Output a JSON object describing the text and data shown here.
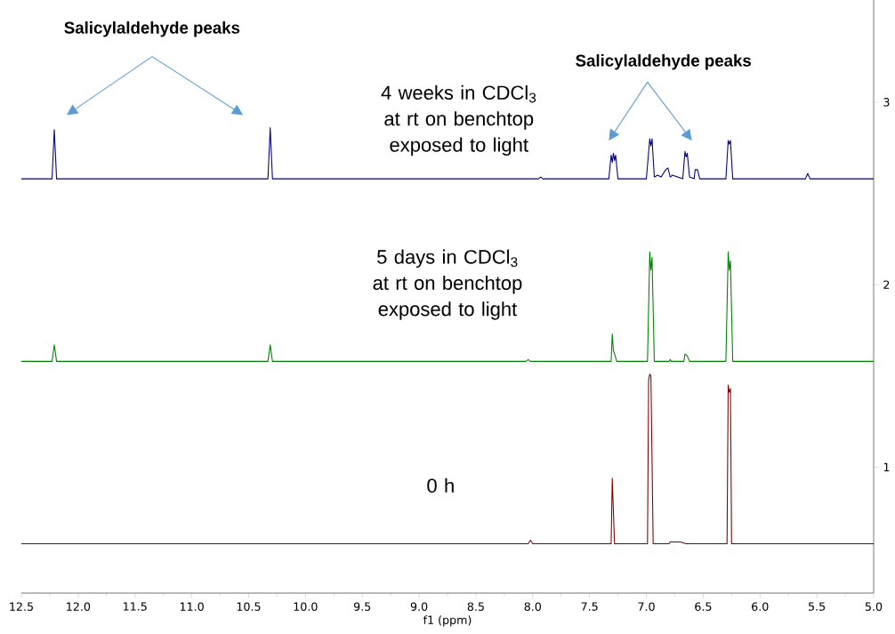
{
  "chart_data": {
    "type": "line",
    "xlabel": "f1 (ppm)",
    "xlim": [
      12.5,
      5.0
    ],
    "ylim": [
      0.31,
      3.56
    ],
    "xticks": [
      {
        "value": 12.5,
        "label": "12.5"
      },
      {
        "value": 12,
        "label": "12.0"
      },
      {
        "value": 11.5,
        "label": "11.5"
      },
      {
        "value": 11,
        "label": "11.0"
      },
      {
        "value": 10.5,
        "label": "10.5"
      },
      {
        "value": 10,
        "label": "10.0"
      },
      {
        "value": 9.5,
        "label": "9.5"
      },
      {
        "value": 9,
        "label": "9.0"
      },
      {
        "value": 8.5,
        "label": "8.5"
      },
      {
        "value": 8,
        "label": "8.0"
      },
      {
        "value": 7.5,
        "label": "7.5"
      },
      {
        "value": 7,
        "label": "7.0"
      },
      {
        "value": 6.5,
        "label": "6.5"
      },
      {
        "value": 6,
        "label": "6.0"
      },
      {
        "value": 5.5,
        "label": "5.5"
      },
      {
        "value": 5,
        "label": "5.0"
      }
    ],
    "yticks": [
      1,
      2,
      3
    ],
    "marker": "none",
    "line_style": "solid",
    "annotations": [
      "Salicylaldehyde peaks",
      "Salicylaldehyde peaks"
    ],
    "series": [
      {
        "name": "4 weeks in CDCl$_{3}$ at rt on benchtop exposed to light",
        "color": "#000080",
        "x": [
          12.5,
          12.23,
          12.21,
          12.19,
          10.33,
          10.31,
          10.29,
          7.95,
          7.93,
          7.91,
          7.33,
          7.31,
          7.3,
          7.29,
          7.28,
          7.27,
          7.25,
          7.0,
          6.97,
          6.96,
          6.95,
          6.93,
          6.9,
          6.87,
          6.83,
          6.81,
          6.79,
          6.77,
          6.68,
          6.66,
          6.65,
          6.64,
          6.62,
          6.58,
          6.57,
          6.55,
          6.53,
          6.3,
          6.28,
          6.27,
          6.26,
          6.24,
          5.6,
          5.58,
          5.56,
          5.0
        ],
        "values": [
          2.58,
          2.58,
          2.85,
          2.58,
          2.58,
          2.86,
          2.58,
          2.58,
          2.59,
          2.58,
          2.58,
          2.71,
          2.67,
          2.72,
          2.68,
          2.71,
          2.58,
          2.58,
          2.8,
          2.76,
          2.8,
          2.59,
          2.6,
          2.59,
          2.63,
          2.64,
          2.59,
          2.6,
          2.58,
          2.73,
          2.7,
          2.72,
          2.59,
          2.58,
          2.63,
          2.63,
          2.58,
          2.58,
          2.79,
          2.77,
          2.79,
          2.58,
          2.58,
          2.61,
          2.58,
          2.58
        ]
      },
      {
        "name": "5 days in CDCl$_{3}$ at rt on benchtop exposed to light",
        "color": "#008000",
        "x": [
          12.5,
          12.23,
          12.21,
          12.19,
          10.33,
          10.31,
          10.29,
          8.06,
          8.04,
          8.02,
          7.31,
          7.3,
          7.29,
          7.28,
          7.26,
          6.99,
          6.97,
          6.96,
          6.95,
          6.93,
          6.8,
          6.79,
          6.78,
          6.67,
          6.66,
          6.64,
          6.62,
          6.3,
          6.28,
          6.27,
          6.26,
          6.24,
          5.0
        ],
        "values": [
          1.58,
          1.58,
          1.67,
          1.58,
          1.58,
          1.67,
          1.58,
          1.58,
          1.59,
          1.58,
          1.58,
          1.73,
          1.64,
          1.62,
          1.58,
          1.58,
          2.18,
          2.08,
          2.15,
          1.58,
          1.58,
          1.59,
          1.58,
          1.58,
          1.62,
          1.61,
          1.58,
          1.58,
          2.18,
          2.08,
          2.13,
          1.58,
          1.58
        ]
      },
      {
        "name": "0 h",
        "color": "#800000",
        "x": [
          12.5,
          8.04,
          8.02,
          8.0,
          7.31,
          7.3,
          7.28,
          6.99,
          6.98,
          6.97,
          6.96,
          6.94,
          6.8,
          6.79,
          6.75,
          6.7,
          6.65,
          6.29,
          6.28,
          6.27,
          6.26,
          6.25,
          5.0
        ],
        "values": [
          0.58,
          0.58,
          0.6,
          0.58,
          0.58,
          0.94,
          0.58,
          0.58,
          1.48,
          1.51,
          1.5,
          0.58,
          0.58,
          0.59,
          0.59,
          0.59,
          0.58,
          0.58,
          1.45,
          1.41,
          1.43,
          0.58,
          0.58
        ]
      }
    ]
  }
}
